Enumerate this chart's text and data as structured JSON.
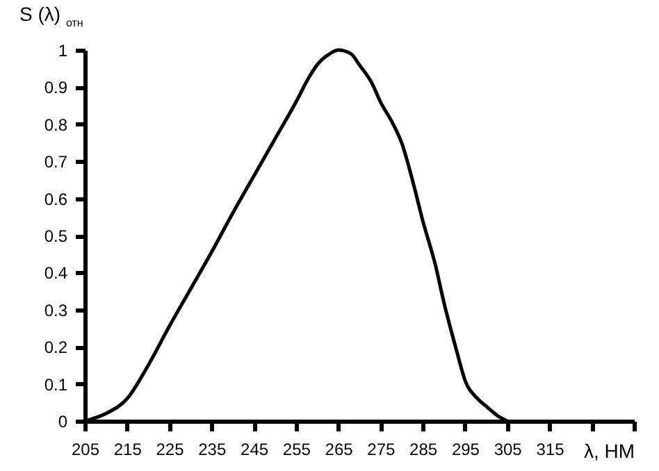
{
  "chart_data": {
    "type": "line",
    "ylabel": "S (λ) $_{отн}$",
    "xlabel": "λ, НМ",
    "x": [
      205,
      210,
      215,
      220,
      225,
      230,
      235,
      240,
      245,
      250,
      255,
      258,
      260,
      263,
      265,
      268,
      270,
      273,
      275,
      278,
      280,
      283,
      285,
      288,
      290,
      293,
      295,
      298,
      300,
      303,
      305
    ],
    "series": [
      {
        "color": "#000000",
        "values": [
          0,
          0.02,
          0.06,
          0.15,
          0.255,
          0.355,
          0.455,
          0.56,
          0.66,
          0.76,
          0.86,
          0.925,
          0.96,
          0.99,
          1.0,
          0.99,
          0.96,
          0.91,
          0.86,
          0.8,
          0.75,
          0.63,
          0.54,
          0.42,
          0.32,
          0.19,
          0.11,
          0.06,
          0.04,
          0.012,
          0
        ]
      }
    ],
    "xlim": [
      205,
      335
    ],
    "xticks": [
      205,
      215,
      225,
      235,
      245,
      255,
      265,
      275,
      285,
      295,
      305,
      315,
      {
        "value": 325,
        "label": null
      },
      {
        "value": 335,
        "label": null
      }
    ],
    "ylim": [
      0,
      1
    ],
    "yticks": [
      0,
      0.1,
      0.2,
      0.3,
      0.4,
      0.5,
      0.6,
      0.7,
      0.8,
      0.9,
      1
    ],
    "grid": false,
    "legend": false,
    "marker": "none",
    "line_style": "solid"
  }
}
